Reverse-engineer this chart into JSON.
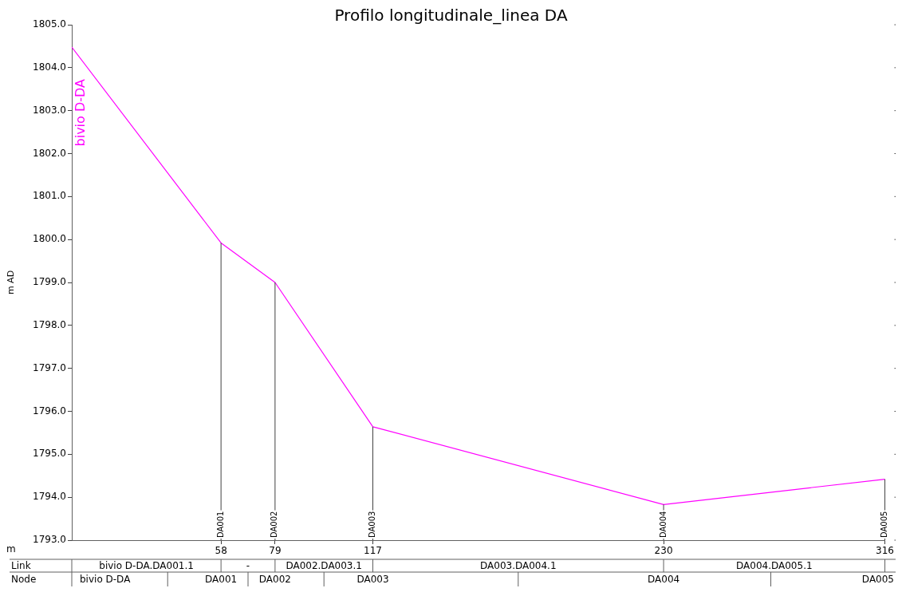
{
  "chart_data": {
    "type": "line",
    "title": "Profilo longitudinale_linea DA",
    "xlabel": "m",
    "ylabel": "m AD",
    "x": [
      0,
      58,
      79,
      117,
      230,
      316
    ],
    "series": [
      {
        "name": "bivio D-DA",
        "color": "#ff00ff",
        "values": [
          1804.48,
          1799.92,
          1799.0,
          1795.64,
          1793.83,
          1794.42
        ]
      }
    ],
    "xlim": [
      0,
      316
    ],
    "xticks": [
      58,
      79,
      117,
      230,
      316
    ],
    "ylim": [
      1793,
      1805
    ],
    "yticks": [
      {
        "value": 1793,
        "label": "1793.0"
      },
      {
        "value": 1794,
        "label": "1794.0"
      },
      {
        "value": 1795,
        "label": "1795.0"
      },
      {
        "value": 1796,
        "label": "1796.0"
      },
      {
        "value": 1797,
        "label": "1797.0"
      },
      {
        "value": 1798,
        "label": "1798.0"
      },
      {
        "value": 1799,
        "label": "1799.0"
      },
      {
        "value": 1800,
        "label": "1800.0"
      },
      {
        "value": 1801,
        "label": "1801.0"
      },
      {
        "value": 1802,
        "label": "1802.0"
      },
      {
        "value": 1803,
        "label": "1803.0"
      },
      {
        "value": 1804,
        "label": "1804.0"
      },
      {
        "value": 1805,
        "label": "1805.0"
      }
    ],
    "grid": false,
    "legend": false,
    "marker": "none",
    "line_style": "solid",
    "ref_lines": [
      {
        "axis": "x",
        "value": 58,
        "label": "DA001",
        "color": "#404040"
      },
      {
        "axis": "x",
        "value": 79,
        "label": "DA002",
        "color": "#404040"
      },
      {
        "axis": "x",
        "value": 117,
        "label": "DA003",
        "color": "#404040"
      },
      {
        "axis": "x",
        "value": 230,
        "label": "DA004",
        "color": "#404040"
      },
      {
        "axis": "x",
        "value": 316,
        "label": "DA005",
        "color": "#404040"
      }
    ],
    "annotations": [
      "Link",
      "bivio D-DA.DA001.1",
      "-",
      "DA002.DA003.1",
      "DA003.DA004.1",
      "DA004.DA005.1",
      "Node",
      "bivio D-DA",
      "DA001",
      "DA002",
      "DA003",
      "DA004",
      "DA005"
    ]
  }
}
